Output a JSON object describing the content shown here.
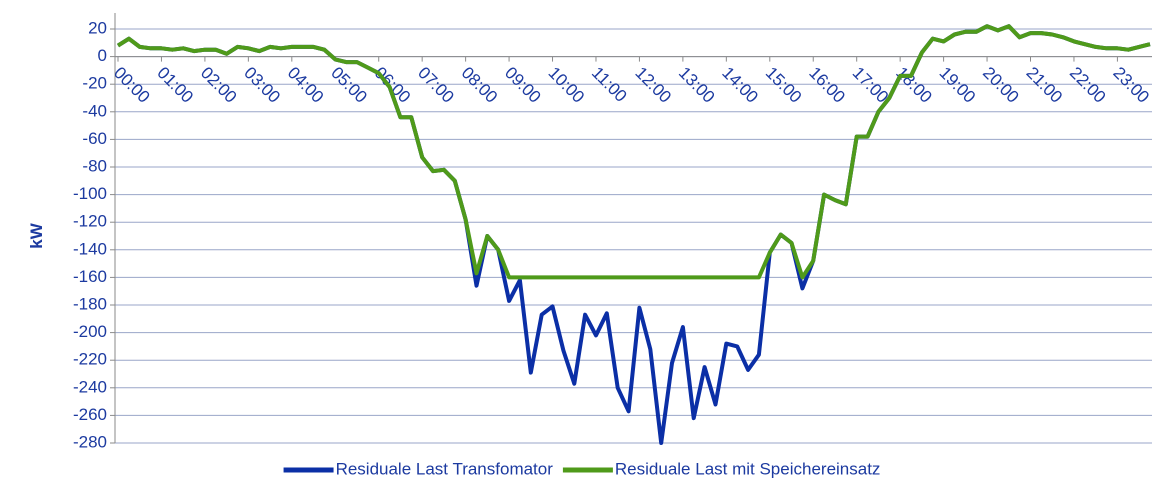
{
  "chart_data": {
    "type": "line",
    "ylabel": "kW",
    "categories": [
      "00:00",
      null,
      null,
      null,
      "01:00",
      null,
      null,
      null,
      "02:00",
      null,
      null,
      null,
      "03:00",
      null,
      null,
      null,
      "04:00",
      null,
      null,
      null,
      "05:00",
      null,
      null,
      null,
      "06:00",
      null,
      null,
      null,
      "07:00",
      null,
      null,
      null,
      "08:00",
      null,
      null,
      null,
      "09:00",
      null,
      null,
      null,
      "10:00",
      null,
      null,
      null,
      "11:00",
      null,
      null,
      null,
      "12:00",
      null,
      null,
      null,
      "13:00",
      null,
      null,
      null,
      "14:00",
      null,
      null,
      null,
      "15:00",
      null,
      null,
      null,
      "16:00",
      null,
      null,
      null,
      "17:00",
      null,
      null,
      null,
      "18:00",
      null,
      null,
      null,
      "19:00",
      null,
      null,
      null,
      "20:00",
      null,
      null,
      null,
      "21:00",
      null,
      null,
      null,
      "22:00",
      null,
      null,
      null,
      "23:00",
      null,
      null,
      null
    ],
    "series": [
      {
        "name": "Residuale Last Transfomator",
        "color": "#0b2fa6",
        "values": [
          8,
          13,
          7,
          6,
          6,
          5,
          6,
          4,
          5,
          5,
          2,
          7,
          6,
          4,
          7,
          6,
          7,
          7,
          7,
          5,
          -2,
          -4,
          -4,
          -8,
          -12,
          -22,
          -44,
          -44,
          -73,
          -83,
          -82,
          -90,
          -118,
          -166,
          -130,
          -140,
          -177,
          -162,
          -229,
          -187,
          -181,
          -213,
          -237,
          -187,
          -202,
          -186,
          -240,
          -257,
          -182,
          -212,
          -280,
          -222,
          -196,
          -262,
          -225,
          -252,
          -208,
          -210,
          -227,
          -216,
          -142,
          -129,
          -135,
          -168,
          -148,
          -100,
          -104,
          -107,
          -58,
          -58,
          -40,
          -30,
          -14,
          -14,
          3,
          13,
          11,
          16,
          18,
          18,
          22,
          19,
          22,
          14,
          17,
          17,
          16,
          14,
          11,
          9,
          7,
          6,
          6,
          5,
          7,
          9
        ]
      },
      {
        "name": "Residuale Last mit Speichereinsatz",
        "color": "#4f9a1a",
        "values": [
          8,
          13,
          7,
          6,
          6,
          5,
          6,
          4,
          5,
          5,
          2,
          7,
          6,
          4,
          7,
          6,
          7,
          7,
          7,
          5,
          -2,
          -4,
          -4,
          -8,
          -12,
          -22,
          -44,
          -44,
          -73,
          -83,
          -82,
          -90,
          -118,
          -157,
          -130,
          -140,
          -160,
          -160,
          -160,
          -160,
          -160,
          -160,
          -160,
          -160,
          -160,
          -160,
          -160,
          -160,
          -160,
          -160,
          -160,
          -160,
          -160,
          -160,
          -160,
          -160,
          -160,
          -160,
          -160,
          -160,
          -142,
          -129,
          -135,
          -160,
          -148,
          -100,
          -104,
          -107,
          -58,
          -58,
          -40,
          -30,
          -14,
          -14,
          3,
          13,
          11,
          16,
          18,
          18,
          22,
          19,
          22,
          14,
          17,
          17,
          16,
          14,
          11,
          9,
          7,
          6,
          6,
          5,
          7,
          9
        ]
      }
    ],
    "ylim": [
      -280,
      20
    ],
    "yticks": [
      20,
      0,
      -20,
      -40,
      -60,
      -80,
      -100,
      -120,
      -140,
      -160,
      -180,
      -200,
      -220,
      -240,
      -260,
      -280
    ],
    "grid": true,
    "legend": "bottom"
  }
}
